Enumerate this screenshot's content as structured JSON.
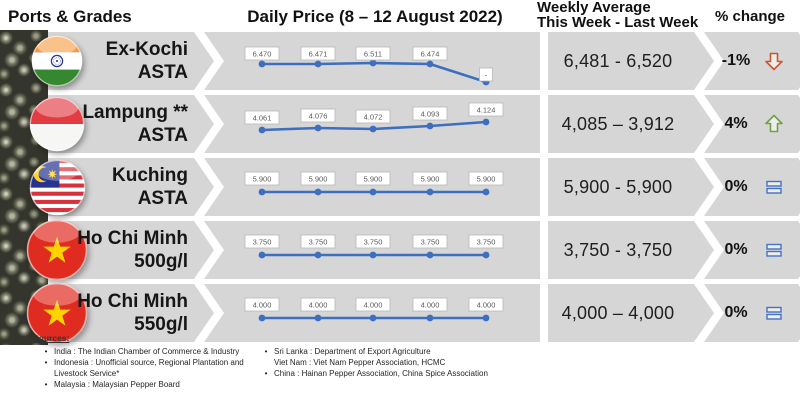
{
  "header": {
    "ports_grades": "Ports & Grades",
    "daily_price": "Daily Price (8 – 12 August 2022)",
    "weekly_avg_line1": "Weekly Average",
    "weekly_avg_line2": "This Week - Last Week",
    "pct_change": "% change"
  },
  "rows": [
    {
      "port": "Ex-Kochi",
      "grade": "ASTA",
      "flag": "india",
      "weekly": "6,481 - 6,520",
      "change": "-1%",
      "indicator": "down"
    },
    {
      "port": "Lampung **",
      "grade": "ASTA",
      "flag": "indonesia",
      "weekly": "4,085 – 3,912",
      "change": "4%",
      "indicator": "up"
    },
    {
      "port": "Kuching",
      "grade": "ASTA",
      "flag": "malaysia",
      "weekly": "5,900 - 5,900",
      "change": "0%",
      "indicator": "equal"
    },
    {
      "port": "Ho Chi Minh",
      "grade": "500g/l",
      "flag": "vietnam",
      "weekly": "3,750 - 3,750",
      "change": "0%",
      "indicator": "equal"
    },
    {
      "port": "Ho Chi Minh",
      "grade": "550g/l",
      "flag": "vietnam",
      "weekly": "4,000 – 4,000",
      "change": "0%",
      "indicator": "equal"
    }
  ],
  "chart_data": [
    {
      "type": "line",
      "series_name": "Ex-Kochi ASTA daily price",
      "x": [
        "2022-08-08",
        "2022-08-09",
        "2022-08-10",
        "2022-08-11",
        "2022-08-12"
      ],
      "values": [
        6470,
        6471,
        6511,
        6474,
        null
      ],
      "point_labels": [
        "6.470",
        "6.471",
        "6.511",
        "6.474",
        "-"
      ],
      "line_color": "#3E6FBE",
      "grid": false,
      "legend": false,
      "y_offsets": [
        32,
        32,
        31,
        32,
        50
      ],
      "label_tops": [
        15,
        15,
        15,
        15,
        36
      ]
    },
    {
      "type": "line",
      "series_name": "Lampung ASTA daily price",
      "x": [
        "2022-08-08",
        "2022-08-09",
        "2022-08-10",
        "2022-08-11",
        "2022-08-12"
      ],
      "values": [
        4061,
        4076,
        4072,
        4093,
        4124
      ],
      "point_labels": [
        "4.061",
        "4.076",
        "4.072",
        "4.093",
        "4.124"
      ],
      "line_color": "#3E6FBE",
      "grid": false,
      "legend": false,
      "y_offsets": [
        35,
        33,
        34,
        31,
        27
      ],
      "label_tops": [
        16,
        14,
        15,
        12,
        8
      ]
    },
    {
      "type": "line",
      "series_name": "Kuching ASTA daily price",
      "x": [
        "2022-08-08",
        "2022-08-09",
        "2022-08-10",
        "2022-08-11",
        "2022-08-12"
      ],
      "values": [
        5900,
        5900,
        5900,
        5900,
        5900
      ],
      "point_labels": [
        "5.900",
        "5.900",
        "5.900",
        "5.900",
        "5.900"
      ],
      "line_color": "#3E6FBE",
      "grid": false,
      "legend": false,
      "y_offsets": [
        34,
        34,
        34,
        34,
        34
      ],
      "label_tops": [
        14,
        14,
        14,
        14,
        14
      ]
    },
    {
      "type": "line",
      "series_name": "Ho Chi Minh 500g/l daily price",
      "x": [
        "2022-08-08",
        "2022-08-09",
        "2022-08-10",
        "2022-08-11",
        "2022-08-12"
      ],
      "values": [
        3750,
        3750,
        3750,
        3750,
        3750
      ],
      "point_labels": [
        "3.750",
        "3.750",
        "3.750",
        "3.750",
        "3.750"
      ],
      "line_color": "#3E6FBE",
      "grid": false,
      "legend": false,
      "y_offsets": [
        34,
        34,
        34,
        34,
        34
      ],
      "label_tops": [
        14,
        14,
        14,
        14,
        14
      ]
    },
    {
      "type": "line",
      "series_name": "Ho Chi Minh 550g/l daily price",
      "x": [
        "2022-08-08",
        "2022-08-09",
        "2022-08-10",
        "2022-08-11",
        "2022-08-12"
      ],
      "values": [
        4000,
        4000,
        4000,
        4000,
        4000
      ],
      "point_labels": [
        "4.000",
        "4.000",
        "4.000",
        "4.000",
        "4.000"
      ],
      "line_color": "#3E6FBE",
      "grid": false,
      "legend": false,
      "y_offsets": [
        34,
        34,
        34,
        34,
        34
      ],
      "label_tops": [
        14,
        14,
        14,
        14,
        14
      ]
    }
  ],
  "icons": {
    "down_arrow_color": "#C8562F",
    "up_arrow_color": "#6FA24A",
    "equal_color": "#4472C4"
  },
  "colors": {
    "band_gray": "#D6D6D6",
    "line_blue": "#3E6FBE"
  },
  "sources": {
    "heading": "Sources:",
    "left": [
      {
        "bullet": "•",
        "text": "India : The Indian Chamber of Commerce & Industry"
      },
      {
        "bullet": "•",
        "text": "Indonesia : Unofficial source, Regional Plantation and Livestock Service*"
      },
      {
        "bullet": "•",
        "text": "Malaysia : Malaysian Pepper Board"
      }
    ],
    "right": [
      {
        "bullet": "•",
        "text": "Sri Lanka : Department of Export Agriculture"
      },
      {
        "bullet": "",
        "text": "Viet Nam : Viet Nam Pepper Association, HCMC"
      },
      {
        "bullet": "•",
        "text": "China : Hainan Pepper Association, China Spice Association"
      }
    ]
  }
}
